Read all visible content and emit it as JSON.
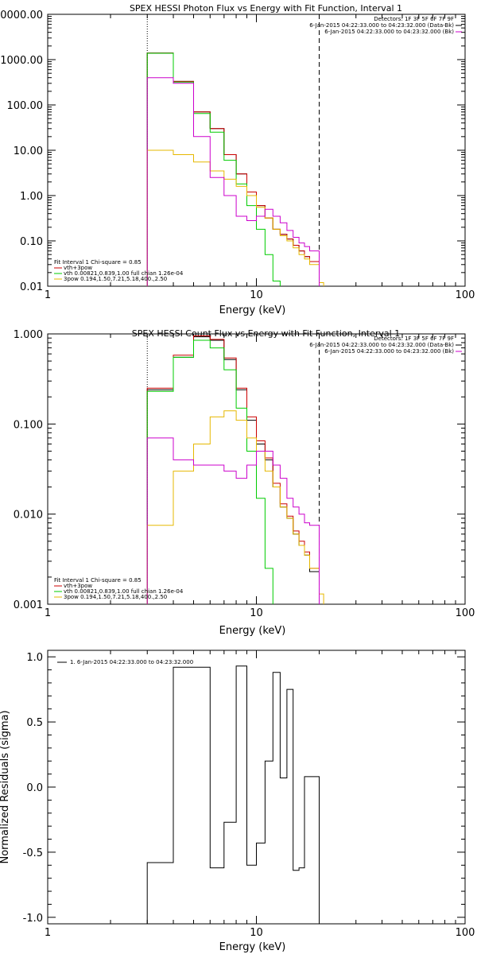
{
  "chart_data": [
    {
      "type": "line",
      "title": "SPEX HESSI Photon Flux vs Energy with Fit Function, Interval 1",
      "xlabel": "Energy (keV)",
      "ylabel": "",
      "xscale": "log",
      "yscale": "log",
      "xlim": [
        1,
        100
      ],
      "ylim": [
        0.01,
        10000
      ],
      "xticks": [
        "1",
        "10",
        "100"
      ],
      "yticks": [
        "0.01",
        "0.10",
        "1.00",
        "10.00",
        "100.00",
        "1000.00",
        "10000.00"
      ],
      "vlines": [
        3,
        20
      ],
      "legend_header": [
        "Detectors: 1F 3F 5F 6F 7F 9F",
        "6-Jan-2015 04:22:33.000 to 04:23:32.000 (Data-Bk)",
        "6-Jan-2015 04:22:33.000 to 04:23:32.000 (Bk)"
      ],
      "legend_header_colors": [
        "#000000",
        "#000000",
        "#cc00cc"
      ],
      "fit_legend": [
        "Fit Interval 1   Chi-square = 0.85",
        "vth+3pow",
        "vth 0.00821,0.839,1.00  full chian 1.26e-04",
        "3pow 0.194,1.50,7.21,5.18,400.,2.50"
      ],
      "fit_legend_colors": [
        "#000000",
        "#cc0000",
        "#00cc00",
        "#e6b800"
      ],
      "series": [
        {
          "name": "Data-Bk",
          "color": "#000000",
          "edges": [
            3,
            4,
            5,
            6,
            7,
            8,
            9,
            10,
            11,
            12,
            13,
            14,
            15,
            16,
            17,
            18,
            20
          ],
          "values": [
            1400,
            330,
            70,
            30,
            8,
            3,
            1.2,
            0.6,
            0.32,
            0.18,
            0.14,
            0.11,
            0.08,
            0.06,
            0.045,
            0.035
          ]
        },
        {
          "name": "vth+3pow",
          "color": "#cc0000",
          "edges": [
            3,
            4,
            5,
            6,
            7,
            8,
            9,
            10,
            11,
            12,
            13,
            14,
            15,
            16,
            17,
            18,
            20
          ],
          "values": [
            1400,
            330,
            70,
            30,
            8,
            3,
            1.2,
            0.6,
            0.32,
            0.18,
            0.14,
            0.11,
            0.08,
            0.06,
            0.045,
            0.035
          ]
        },
        {
          "name": "vth",
          "color": "#00cc00",
          "edges": [
            3,
            4,
            5,
            6,
            7,
            8,
            9,
            10,
            11,
            12,
            13
          ],
          "values": [
            1380,
            320,
            65,
            25,
            6,
            1.8,
            0.6,
            0.18,
            0.05,
            0.013
          ]
        },
        {
          "name": "3pow",
          "color": "#e6b800",
          "edges": [
            3,
            4,
            5,
            6,
            7,
            8,
            9,
            10,
            11,
            12,
            13,
            14,
            15,
            16,
            17,
            18,
            20,
            21
          ],
          "values": [
            10,
            8,
            5.5,
            3.5,
            2.3,
            1.6,
            1.0,
            0.55,
            0.32,
            0.18,
            0.13,
            0.1,
            0.07,
            0.05,
            0.04,
            0.03,
            0.012
          ]
        },
        {
          "name": "Bk",
          "color": "#cc00cc",
          "edges": [
            3,
            4,
            5,
            6,
            7,
            8,
            9,
            10,
            11,
            12,
            13,
            14,
            15,
            16,
            17,
            18,
            20
          ],
          "values": [
            400,
            300,
            20,
            2.5,
            1,
            0.35,
            0.28,
            0.35,
            0.5,
            0.35,
            0.25,
            0.17,
            0.12,
            0.09,
            0.075,
            0.06
          ]
        }
      ]
    },
    {
      "type": "line",
      "title": "SPEX HESSI Count Flux vs Energy with Fit Function, Interval 1",
      "xlabel": "Energy (keV)",
      "ylabel": "",
      "xscale": "log",
      "yscale": "log",
      "xlim": [
        1,
        100
      ],
      "ylim": [
        0.001,
        1.0
      ],
      "xticks": [
        "1",
        "10",
        "100"
      ],
      "yticks": [
        "0.001",
        "0.010",
        "0.100",
        "1.000"
      ],
      "vlines": [
        3,
        20
      ],
      "legend_header": [
        "Detectors: 1F 3F 5F 6F 7F 9F",
        "6-Jan-2015 04:22:33.000 to 04:23:32.000 (Data-Bk)",
        "6-Jan-2015 04:22:33.000 to 04:23:32.000 (Bk)"
      ],
      "legend_header_colors": [
        "#000000",
        "#000000",
        "#cc00cc"
      ],
      "fit_legend": [
        "Fit Interval 1   Chi-square = 0.85",
        "vth+3pow",
        "vth 0.00821,0.839,1.00  full chian 1.26e-04",
        "3pow 0.194,1.50,7.21,5.18,400.,2.50"
      ],
      "fit_legend_colors": [
        "#000000",
        "#cc0000",
        "#00cc00",
        "#e6b800"
      ],
      "series": [
        {
          "name": "Data-Bk",
          "color": "#000000",
          "edges": [
            3,
            4,
            5,
            6,
            7,
            8,
            9,
            10,
            11,
            12,
            13,
            14,
            15,
            16,
            17,
            18,
            20
          ],
          "values": [
            0.24,
            0.55,
            0.93,
            0.85,
            0.52,
            0.24,
            0.11,
            0.06,
            0.04,
            0.02,
            0.012,
            0.009,
            0.006,
            0.0045,
            0.0035,
            0.0023
          ]
        },
        {
          "name": "vth+3pow",
          "color": "#cc0000",
          "edges": [
            3,
            4,
            5,
            6,
            7,
            8,
            9,
            10,
            11,
            12,
            13,
            14,
            15,
            16,
            17,
            18,
            20
          ],
          "values": [
            0.25,
            0.58,
            0.95,
            0.87,
            0.54,
            0.25,
            0.12,
            0.065,
            0.042,
            0.022,
            0.013,
            0.0095,
            0.0065,
            0.005,
            0.0038,
            0.0025
          ]
        },
        {
          "name": "vth",
          "color": "#00cc00",
          "edges": [
            3,
            4,
            5,
            6,
            7,
            8,
            9,
            10,
            11,
            12
          ],
          "values": [
            0.23,
            0.55,
            0.85,
            0.7,
            0.4,
            0.15,
            0.05,
            0.015,
            0.0025
          ]
        },
        {
          "name": "3pow",
          "color": "#e6b800",
          "edges": [
            3,
            4,
            5,
            6,
            7,
            8,
            9,
            10,
            11,
            12,
            13,
            14,
            15,
            16,
            17,
            18,
            20,
            21
          ],
          "values": [
            0.0075,
            0.03,
            0.06,
            0.12,
            0.14,
            0.11,
            0.07,
            0.05,
            0.03,
            0.02,
            0.012,
            0.009,
            0.006,
            0.0045,
            0.0035,
            0.0025,
            0.0013
          ]
        },
        {
          "name": "Bk",
          "color": "#cc00cc",
          "edges": [
            3,
            4,
            5,
            6,
            7,
            8,
            9,
            10,
            11,
            12,
            13,
            14,
            15,
            16,
            17,
            18,
            20
          ],
          "values": [
            0.07,
            0.04,
            0.035,
            0.035,
            0.03,
            0.025,
            0.035,
            0.05,
            0.05,
            0.035,
            0.025,
            0.015,
            0.012,
            0.01,
            0.008,
            0.0075
          ]
        }
      ]
    },
    {
      "type": "line",
      "title": "",
      "xlabel": "Energy (keV)",
      "ylabel": "Normalized Residuals (sigma)",
      "xscale": "log",
      "yscale": "linear",
      "xlim": [
        1,
        100
      ],
      "ylim": [
        -1.05,
        1.05
      ],
      "xticks": [
        "1",
        "10",
        "100"
      ],
      "yticks": [
        "-1.0",
        "-0.5",
        "0.0",
        "0.5",
        "1.0"
      ],
      "legend": [
        "1.  6-Jan-2015 04:22:33.000 to 04:23:32.000"
      ],
      "series": [
        {
          "name": "1.  6-Jan-2015 04:22:33.000 to 04:23:32.000",
          "color": "#000000",
          "edges": [
            3,
            4,
            5,
            6,
            7,
            8,
            9,
            10,
            11,
            12,
            13,
            14,
            15,
            16,
            17,
            18,
            20
          ],
          "values": [
            -0.58,
            0.92,
            0.92,
            -0.62,
            -0.27,
            0.93,
            -0.6,
            -0.43,
            0.2,
            0.88,
            0.07,
            0.75,
            -0.64,
            -0.62,
            0.08,
            0.08
          ]
        }
      ]
    }
  ]
}
